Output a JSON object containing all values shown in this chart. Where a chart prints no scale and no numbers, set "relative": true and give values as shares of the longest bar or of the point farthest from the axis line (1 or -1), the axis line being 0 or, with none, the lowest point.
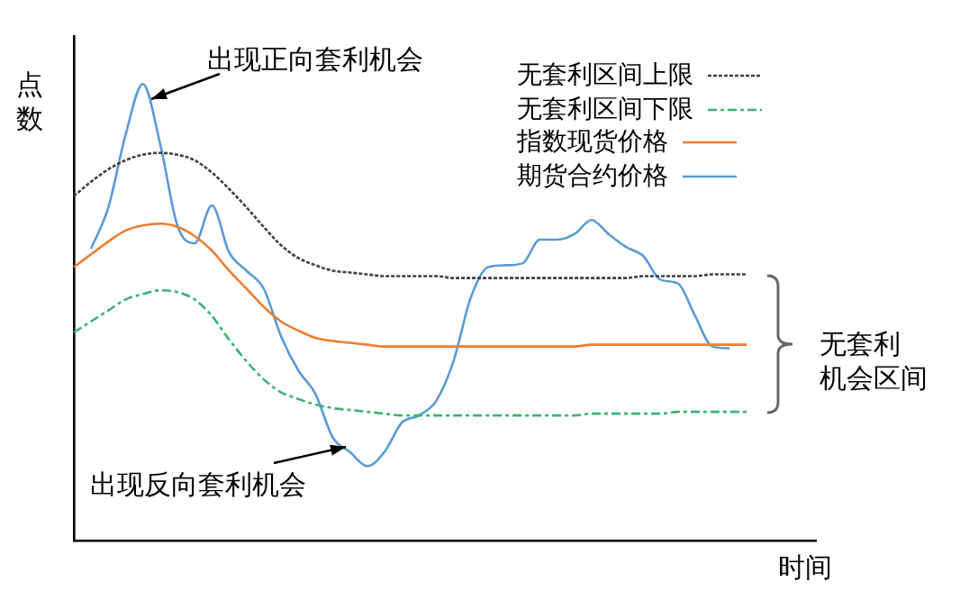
{
  "chart_data": {
    "type": "line",
    "relative": true,
    "xlabel": "时间",
    "ylabel": "点数",
    "legend": "top right",
    "marker": "none",
    "grid": false,
    "categories": [
      null,
      null,
      null,
      null,
      null,
      null,
      null,
      null,
      null,
      null,
      null,
      null,
      null,
      null,
      null,
      null,
      null,
      null,
      null,
      null,
      null,
      null,
      null,
      null,
      null,
      null,
      null,
      null,
      null,
      null,
      null,
      null,
      null,
      null,
      null,
      null,
      null,
      null,
      null,
      null,
      null,
      null,
      null,
      null
    ],
    "series": [
      {
        "name": "无套利区间上限",
        "color": "#404040",
        "line_style": "dotted",
        "values": [
          0.754,
          0.786,
          0.813,
          0.833,
          0.845,
          0.849,
          0.845,
          0.833,
          0.806,
          0.77,
          0.73,
          0.687,
          0.647,
          0.619,
          0.603,
          0.591,
          0.587,
          0.583,
          0.579,
          0.579,
          0.579,
          0.579,
          0.575,
          0.575,
          0.575,
          0.575,
          0.575,
          0.575,
          0.575,
          0.575,
          0.575,
          0.575,
          0.575,
          0.579,
          0.579,
          0.579,
          0.579,
          0.583,
          0.583,
          0.583,
          null,
          null,
          null,
          null
        ]
      },
      {
        "name": "无套利区间下限",
        "color": "#3cb371",
        "line_style": "dashed",
        "values": [
          0.456,
          0.48,
          0.504,
          0.528,
          0.54,
          0.548,
          0.544,
          0.528,
          0.492,
          0.44,
          0.393,
          0.353,
          0.325,
          0.31,
          0.298,
          0.29,
          0.286,
          0.282,
          0.278,
          0.274,
          0.274,
          0.274,
          0.274,
          0.274,
          0.274,
          0.274,
          0.274,
          0.274,
          0.274,
          0.274,
          0.278,
          0.278,
          0.278,
          0.278,
          0.278,
          0.282,
          0.282,
          0.282,
          0.282,
          0.282,
          null,
          null,
          null,
          null
        ]
      },
      {
        "name": "指数现货价格",
        "color": "#ed7d31",
        "line_style": "solid",
        "values": [
          0.599,
          0.627,
          0.655,
          0.679,
          0.69,
          0.694,
          0.687,
          0.667,
          0.635,
          0.591,
          0.552,
          0.512,
          0.48,
          0.46,
          0.444,
          0.437,
          0.433,
          0.429,
          0.425,
          0.425,
          0.425,
          0.425,
          0.425,
          0.425,
          0.425,
          0.425,
          0.425,
          0.425,
          0.425,
          0.425,
          0.429,
          0.429,
          0.429,
          0.429,
          0.429,
          0.429,
          0.429,
          0.429,
          0.429,
          0.429,
          null,
          null,
          null,
          null
        ]
      },
      {
        "name": "期货合约价格",
        "color": "#5b9bd5",
        "line_style": "solid",
        "values": [
          null,
          0.639,
          0.73,
          0.889,
          1,
          0.869,
          0.69,
          0.651,
          0.734,
          0.631,
          0.591,
          0.552,
          0.448,
          0.373,
          0.321,
          0.226,
          0.194,
          0.163,
          0.194,
          0.258,
          0.274,
          0.306,
          0.393,
          0.532,
          0.599,
          0.603,
          0.607,
          0.659,
          0.659,
          0.671,
          0.702,
          0.671,
          0.643,
          0.623,
          0.571,
          0.563,
          0.492,
          0.425,
          0.421,
          null,
          null,
          null,
          null,
          null
        ]
      }
    ],
    "annotations": [
      "出现正向套利机会",
      "出现反向套利机会",
      "无套利",
      "机会区间"
    ]
  }
}
